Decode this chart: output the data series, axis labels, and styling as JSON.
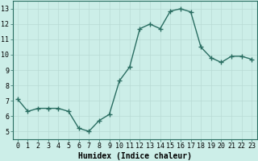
{
  "x": [
    0,
    1,
    2,
    3,
    4,
    5,
    6,
    7,
    8,
    9,
    10,
    11,
    12,
    13,
    14,
    15,
    16,
    17,
    18,
    19,
    20,
    21,
    22,
    23
  ],
  "y": [
    7.1,
    6.3,
    6.5,
    6.5,
    6.5,
    6.3,
    5.2,
    5.0,
    5.7,
    6.1,
    8.3,
    9.2,
    11.7,
    12.0,
    11.7,
    12.85,
    13.0,
    12.8,
    10.5,
    9.8,
    9.5,
    9.9,
    9.9,
    9.7
  ],
  "line_color": "#2a6e62",
  "marker": "+",
  "marker_size": 4,
  "marker_color": "#2a6e62",
  "bg_color": "#cceee8",
  "grid_color": "#b8dbd5",
  "xlabel": "Humidex (Indice chaleur)",
  "xlim": [
    -0.5,
    23.5
  ],
  "ylim": [
    4.5,
    13.5
  ],
  "yticks": [
    5,
    6,
    7,
    8,
    9,
    10,
    11,
    12,
    13
  ],
  "xticks": [
    0,
    1,
    2,
    3,
    4,
    5,
    6,
    7,
    8,
    9,
    10,
    11,
    12,
    13,
    14,
    15,
    16,
    17,
    18,
    19,
    20,
    21,
    22,
    23
  ],
  "xlabel_fontsize": 7,
  "tick_fontsize": 6,
  "line_width": 1.0
}
